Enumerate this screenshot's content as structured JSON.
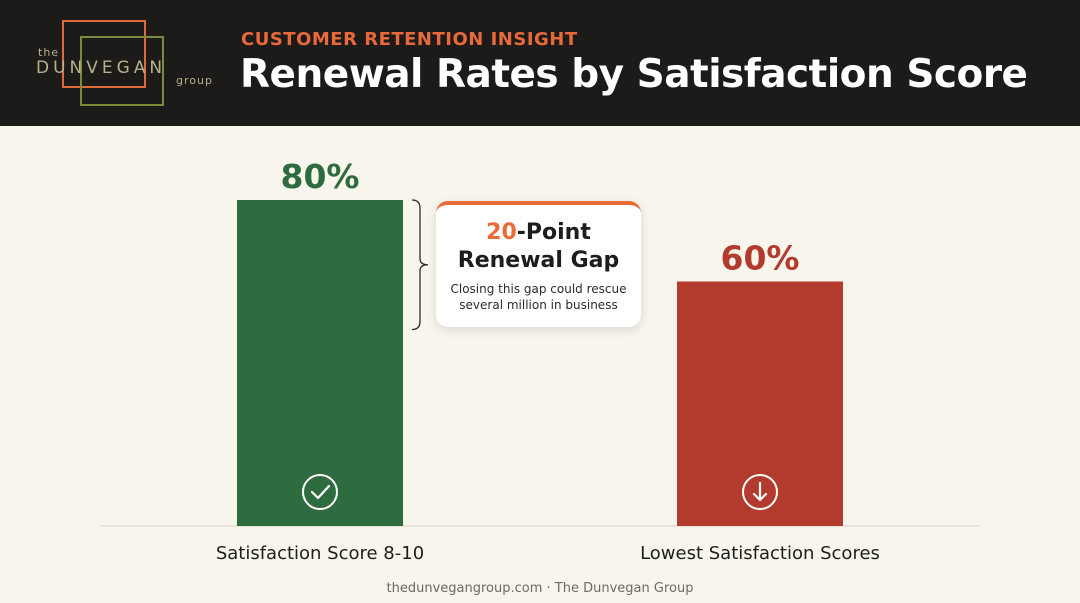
{
  "header": {
    "eyebrow": "CUSTOMER RETENTION INSIGHT",
    "title": "Renewal Rates by Satisfaction Score"
  },
  "logo": {
    "the": "the",
    "name": "DUNVEGAN",
    "group": "group"
  },
  "chart_data": {
    "type": "bar",
    "title": "Renewal Rates by Satisfaction Score",
    "categories": [
      "Satisfaction Score 8-10",
      "Lowest Satisfaction Scores"
    ],
    "values": [
      80,
      60
    ],
    "value_labels": [
      "80%",
      "60%"
    ],
    "ylim": [
      0,
      80
    ],
    "colors": [
      "#2e6b3f",
      "#b23b2e"
    ],
    "icons": [
      "check-circle-icon",
      "arrow-down-circle-icon"
    ],
    "grid": false,
    "annotation": {
      "number": "20",
      "line1_rest": "-Point",
      "line2": "Renewal Gap",
      "description": "Closing this gap could rescue several million in business"
    }
  },
  "footer": {
    "text": "thedunvegangroup.com · The Dunvegan Group"
  }
}
